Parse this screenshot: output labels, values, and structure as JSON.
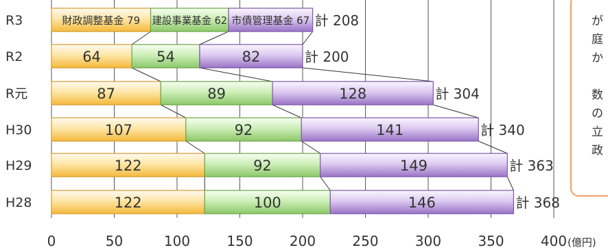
{
  "chart_data": {
    "type": "bar",
    "orientation": "horizontal",
    "stacked": true,
    "categories": [
      "R3",
      "R2",
      "R元",
      "H30",
      "H29",
      "H28"
    ],
    "series": [
      {
        "name": "財政調整基金",
        "values": [
          79,
          64,
          87,
          107,
          122,
          122
        ]
      },
      {
        "name": "建設事業基金",
        "values": [
          62,
          54,
          89,
          92,
          92,
          100
        ]
      },
      {
        "name": "市債管理基金",
        "values": [
          67,
          82,
          128,
          141,
          149,
          146
        ]
      }
    ],
    "totals": [
      "計 208",
      "計 200",
      "計 304",
      "計 340",
      "計 363",
      "計 368"
    ],
    "x_ticks": [
      "0",
      "50",
      "100",
      "150",
      "200",
      "250",
      "300",
      "350",
      "400"
    ],
    "x_unit": "(億円)",
    "xlim": [
      0,
      400
    ],
    "grid": true,
    "legend": "inline-first-bar",
    "colors": [
      "#f7c862",
      "#a9d88c",
      "#b28fd4"
    ]
  },
  "callout": {
    "lines": [
      "が",
      "庭",
      "か",
      "",
      "数",
      "の",
      "立",
      "政"
    ]
  }
}
